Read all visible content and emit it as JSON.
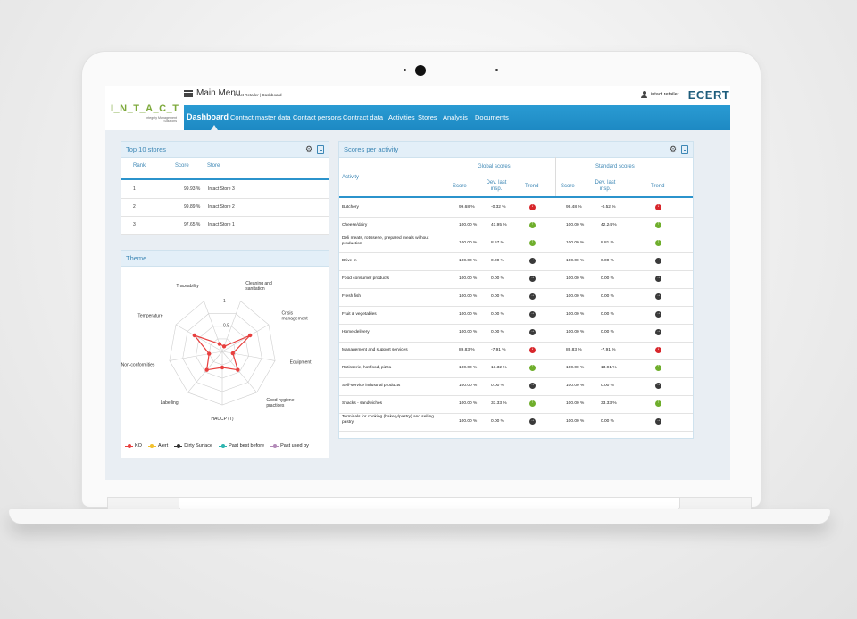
{
  "app": {
    "logo": "I_N_T_A_C_T",
    "logo_sub": "Integrity Management Solutions",
    "menu_label": "Main Menu",
    "breadcrumb": "Intact Retailer | Dashboard",
    "user": "intact retailer",
    "brand": "ECERT"
  },
  "nav": [
    "Dashboard",
    "Contact master data",
    "Contact persons",
    "Contract data",
    "Activities",
    "Stores",
    "Analysis",
    "Documents"
  ],
  "top10": {
    "title": "Top 10 stores",
    "headers": {
      "rank": "Rank",
      "score": "Score",
      "store": "Store"
    },
    "rows": [
      {
        "rank": "1",
        "score": "99.93 %",
        "store": "Intact Store 3"
      },
      {
        "rank": "2",
        "score": "99.89 %",
        "store": "Intact Store 2"
      },
      {
        "rank": "3",
        "score": "97.65 %",
        "store": "Intact Store 1"
      }
    ]
  },
  "theme": {
    "title": "Theme",
    "axes": [
      "Cleaning and sanitation",
      "Crisis management",
      "Equipment",
      "Good hygiene practices",
      "HACCP (T)",
      "Labelling",
      "Non-conformities",
      "Temperature",
      "Traceability"
    ],
    "ring_labels": [
      "1",
      "0.5"
    ],
    "legend": [
      {
        "label": "KO",
        "color": "#e8403f"
      },
      {
        "label": "Alert",
        "color": "#f2c12e"
      },
      {
        "label": "Dirty Surface",
        "color": "#333333"
      },
      {
        "label": "Past best before",
        "color": "#2fb5b0"
      },
      {
        "label": "Past used by",
        "color": "#b38ab8"
      }
    ],
    "series_ko": [
      0.1,
      0.6,
      0.2,
      0.45,
      0.3,
      0.45,
      0.25,
      0.6,
      0.15
    ]
  },
  "activity": {
    "title": "Scores per activity",
    "header": {
      "activity": "Activity",
      "global": "Global scores",
      "standard": "Standard scores",
      "score": "Score",
      "dev": "Dev. last insp.",
      "trend": "Trend"
    },
    "rows": [
      {
        "name": "Butchery",
        "g_score": "99.68 %",
        "g_dev": "-0.32 %",
        "g_trend": "down",
        "s_score": "99.48 %",
        "s_dev": "-0.52 %",
        "s_trend": "down"
      },
      {
        "name": "Cheese/dairy",
        "g_score": "100.00 %",
        "g_dev": "41.95 %",
        "g_trend": "up",
        "s_score": "100.00 %",
        "s_dev": "42.24 %",
        "s_trend": "up"
      },
      {
        "name": "Deli meats, rotisserie, prepared meals without production",
        "g_score": "100.00 %",
        "g_dev": "8.57 %",
        "g_trend": "up",
        "s_score": "100.00 %",
        "s_dev": "8.81 %",
        "s_trend": "up"
      },
      {
        "name": "Drive-in",
        "g_score": "100.00 %",
        "g_dev": "0.00 %",
        "g_trend": "flat",
        "s_score": "100.00 %",
        "s_dev": "0.00 %",
        "s_trend": "flat"
      },
      {
        "name": "Food consumer products",
        "g_score": "100.00 %",
        "g_dev": "0.00 %",
        "g_trend": "flat",
        "s_score": "100.00 %",
        "s_dev": "0.00 %",
        "s_trend": "flat"
      },
      {
        "name": "Fresh fish",
        "g_score": "100.00 %",
        "g_dev": "0.00 %",
        "g_trend": "flat",
        "s_score": "100.00 %",
        "s_dev": "0.00 %",
        "s_trend": "flat"
      },
      {
        "name": "Fruit & vegetables",
        "g_score": "100.00 %",
        "g_dev": "0.00 %",
        "g_trend": "flat",
        "s_score": "100.00 %",
        "s_dev": "0.00 %",
        "s_trend": "flat"
      },
      {
        "name": "Home delivery",
        "g_score": "100.00 %",
        "g_dev": "0.00 %",
        "g_trend": "flat",
        "s_score": "100.00 %",
        "s_dev": "0.00 %",
        "s_trend": "flat"
      },
      {
        "name": "Management and support services",
        "g_score": "89.83 %",
        "g_dev": "-7.91 %",
        "g_trend": "down",
        "s_score": "89.83 %",
        "s_dev": "-7.91 %",
        "s_trend": "down"
      },
      {
        "name": "Rotisserie, hot food, pizza",
        "g_score": "100.00 %",
        "g_dev": "13.32 %",
        "g_trend": "up",
        "s_score": "100.00 %",
        "s_dev": "13.91 %",
        "s_trend": "up"
      },
      {
        "name": "Self-service industrial products",
        "g_score": "100.00 %",
        "g_dev": "0.00 %",
        "g_trend": "flat",
        "s_score": "100.00 %",
        "s_dev": "0.00 %",
        "s_trend": "flat"
      },
      {
        "name": "Snacks - sandwiches",
        "g_score": "100.00 %",
        "g_dev": "33.33 %",
        "g_trend": "up",
        "s_score": "100.00 %",
        "s_dev": "33.33 %",
        "s_trend": "up"
      },
      {
        "name": "Terminals for cooking (bakery/pastry) and selling pastry",
        "g_score": "100.00 %",
        "g_dev": "0.00 %",
        "g_trend": "flat",
        "s_score": "100.00 %",
        "s_dev": "0.00 %",
        "s_trend": "flat"
      }
    ]
  }
}
